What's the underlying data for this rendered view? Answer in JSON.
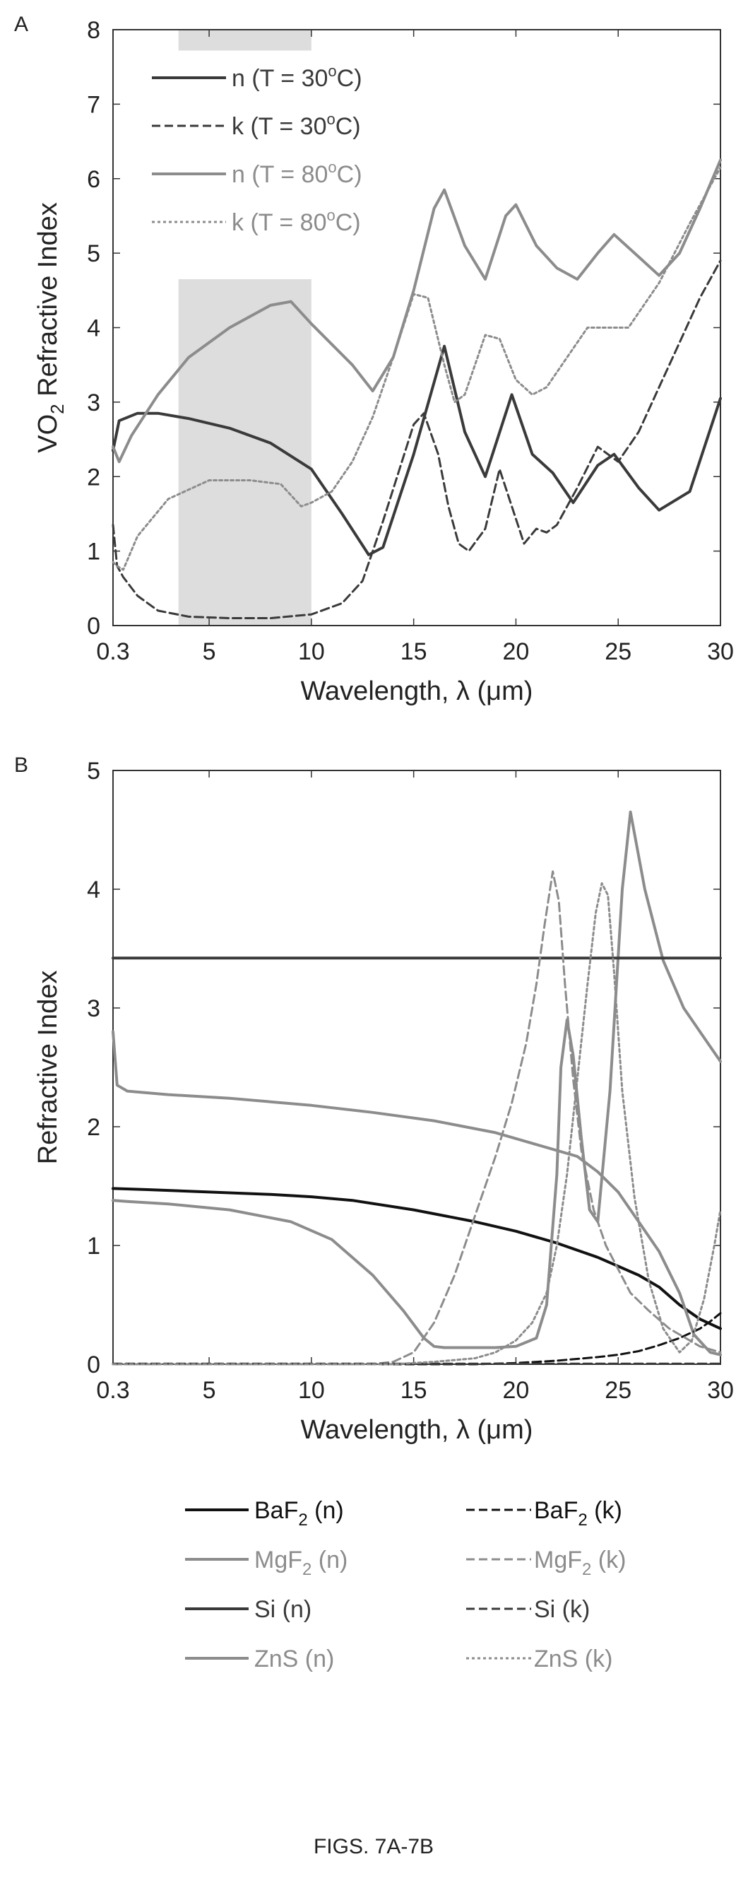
{
  "figure_caption": "FIGS. 7A-7B",
  "colors": {
    "dark": "#3a3a3a",
    "gray": "#8c8c8c",
    "black": "#111111",
    "shade": "#d4d4d4"
  },
  "chart_data": [
    {
      "type": "line",
      "panel_label": "A",
      "title": "",
      "xlabel": "Wavelength, λ (μm)",
      "ylabel_main": "VO",
      "ylabel_sub": "2",
      "ylabel_rest": " Refractive Index",
      "xlim": [
        0.3,
        30
      ],
      "ylim": [
        0,
        8
      ],
      "xticks": [
        0.3,
        5,
        10,
        15,
        20,
        25,
        30
      ],
      "xtick_labels": [
        "0.3",
        "5",
        "10",
        "15",
        "20",
        "25",
        "30"
      ],
      "yticks": [
        0,
        1,
        2,
        3,
        4,
        5,
        6,
        7,
        8
      ],
      "ytick_labels": [
        "0",
        "1",
        "2",
        "3",
        "4",
        "5",
        "6",
        "7",
        "8"
      ],
      "grid": false,
      "legend_position": "top-left",
      "shaded_bands": [
        {
          "x0": 3.5,
          "x1": 10,
          "y0": 0,
          "y1": 4.65
        },
        {
          "x0": 3.5,
          "x1": 10,
          "y0": 7.72,
          "y1": 8
        }
      ],
      "series": [
        {
          "label_main": "n (T = 30",
          "label_sup": "o",
          "label_tail": "C)",
          "color": "dark",
          "dash": "solid",
          "x": [
            0.3,
            0.6,
            1.5,
            2.5,
            4,
            6,
            8,
            10,
            11.5,
            12.8,
            13.5,
            15,
            16.5,
            17.5,
            18.5,
            19.8,
            20.8,
            21.8,
            22.8,
            24,
            24.8,
            26,
            27,
            28.5,
            30
          ],
          "y": [
            2.35,
            2.75,
            2.85,
            2.85,
            2.78,
            2.65,
            2.45,
            2.1,
            1.5,
            0.95,
            1.05,
            2.3,
            3.75,
            2.6,
            2.0,
            3.1,
            2.3,
            2.05,
            1.65,
            2.15,
            2.3,
            1.85,
            1.55,
            1.8,
            3.05
          ]
        },
        {
          "label_main": "k (T = 30",
          "label_sup": "o",
          "label_tail": "C)",
          "color": "dark",
          "dash": "dash",
          "x": [
            0.3,
            0.5,
            0.8,
            1.5,
            2.5,
            4,
            6,
            8,
            10,
            11.5,
            12.5,
            13.5,
            15,
            15.5,
            16.2,
            16.7,
            17.2,
            17.7,
            18.5,
            19.2,
            19.8,
            20.4,
            21,
            21.5,
            22,
            23,
            24,
            25,
            26,
            27,
            28,
            29,
            30
          ],
          "y": [
            1.35,
            0.8,
            0.65,
            0.4,
            0.2,
            0.12,
            0.1,
            0.1,
            0.15,
            0.3,
            0.6,
            1.4,
            2.7,
            2.85,
            2.3,
            1.6,
            1.1,
            1.0,
            1.3,
            2.1,
            1.6,
            1.1,
            1.3,
            1.25,
            1.35,
            1.85,
            2.4,
            2.2,
            2.6,
            3.2,
            3.8,
            4.4,
            4.9
          ]
        },
        {
          "label_main": "n (T = 80",
          "label_sup": "o",
          "label_tail": "C)",
          "color": "gray",
          "dash": "solid",
          "x": [
            0.3,
            0.6,
            1.2,
            2.5,
            4,
            6,
            8,
            9,
            10,
            12,
            13,
            14,
            15,
            16,
            16.5,
            17.5,
            18.5,
            19.5,
            20,
            21,
            22,
            23,
            24,
            24.8,
            26,
            27,
            28,
            29,
            30
          ],
          "y": [
            2.4,
            2.2,
            2.55,
            3.1,
            3.6,
            4.0,
            4.3,
            4.35,
            4.05,
            3.5,
            3.15,
            3.6,
            4.5,
            5.6,
            5.85,
            5.1,
            4.65,
            5.5,
            5.65,
            5.1,
            4.8,
            4.65,
            5.0,
            5.25,
            4.95,
            4.7,
            5.0,
            5.6,
            6.25
          ]
        },
        {
          "label_main": "k (T = 80",
          "label_sup": "o",
          "label_tail": "C)",
          "color": "gray",
          "dash": "dot",
          "x": [
            0.3,
            0.5,
            0.8,
            1.5,
            3,
            5,
            7,
            8.5,
            9.5,
            10,
            11,
            12,
            13,
            14,
            15,
            15.7,
            16.5,
            17,
            17.5,
            18.5,
            19.2,
            20,
            20.8,
            21.5,
            22.5,
            23.5,
            24.3,
            25.5,
            27,
            28.5,
            30
          ],
          "y": [
            0.85,
            0.8,
            0.75,
            1.2,
            1.7,
            1.95,
            1.95,
            1.9,
            1.6,
            1.65,
            1.8,
            2.2,
            2.8,
            3.6,
            4.45,
            4.4,
            3.5,
            3.0,
            3.1,
            3.9,
            3.85,
            3.3,
            3.1,
            3.2,
            3.6,
            4.0,
            4.0,
            4.0,
            4.6,
            5.4,
            6.15
          ]
        }
      ]
    },
    {
      "type": "line",
      "panel_label": "B",
      "title": "",
      "xlabel": "Wavelength, λ (μm)",
      "ylabel_main": "Refractive Index",
      "xlim": [
        0.3,
        30
      ],
      "ylim": [
        0,
        5
      ],
      "xticks": [
        0.3,
        5,
        10,
        15,
        20,
        25,
        30
      ],
      "xtick_labels": [
        "0.3",
        "5",
        "10",
        "15",
        "20",
        "25",
        "30"
      ],
      "yticks": [
        0,
        1,
        2,
        3,
        4,
        5
      ],
      "ytick_labels": [
        "0",
        "1",
        "2",
        "3",
        "4",
        "5"
      ],
      "grid": false,
      "legend_position": "below",
      "series": [
        {
          "label_main": "BaF",
          "label_sub": "2",
          "label_tail": " (n)",
          "color": "black",
          "dash": "solid",
          "x": [
            0.3,
            2,
            5,
            8,
            10,
            12,
            15,
            18,
            20,
            22,
            24,
            26,
            27,
            28,
            29,
            30
          ],
          "y": [
            1.48,
            1.47,
            1.45,
            1.43,
            1.41,
            1.38,
            1.3,
            1.2,
            1.12,
            1.02,
            0.9,
            0.75,
            0.65,
            0.5,
            0.38,
            0.3
          ]
        },
        {
          "label_main": "MgF",
          "label_sub": "2",
          "label_tail": " (n)",
          "color": "gray",
          "dash": "solid",
          "x": [
            0.3,
            1,
            3,
            6,
            9,
            11,
            13,
            14.5,
            15.5,
            16,
            16.5,
            17,
            18,
            19,
            20,
            21,
            21.5,
            22,
            22.2,
            22.5,
            22.8,
            23.2,
            23.6,
            24,
            24.6,
            25.2,
            25.6,
            26.3,
            27.2,
            28.2,
            29.2,
            30
          ],
          "y": [
            1.38,
            1.37,
            1.35,
            1.3,
            1.2,
            1.05,
            0.75,
            0.45,
            0.22,
            0.15,
            0.14,
            0.14,
            0.14,
            0.14,
            0.15,
            0.22,
            0.5,
            1.6,
            2.5,
            2.9,
            2.6,
            1.9,
            1.3,
            1.2,
            2.3,
            4.0,
            4.65,
            4.0,
            3.4,
            3.0,
            2.75,
            2.55
          ]
        },
        {
          "label_main": "Si (n)",
          "label_tail": "",
          "color": "dark",
          "dash": "solid",
          "x": [
            0.3,
            30
          ],
          "y": [
            3.42,
            3.42
          ]
        },
        {
          "label_main": "ZnS (n)",
          "label_tail": "",
          "color": "gray",
          "dash": "solid",
          "x": [
            0.3,
            0.5,
            1,
            3,
            6,
            10,
            13,
            16,
            19,
            21,
            22,
            23,
            24,
            25,
            26,
            27,
            28,
            28.7,
            29.5,
            30
          ],
          "y": [
            2.8,
            2.35,
            2.3,
            2.27,
            2.24,
            2.18,
            2.12,
            2.05,
            1.95,
            1.85,
            1.8,
            1.75,
            1.62,
            1.45,
            1.2,
            0.95,
            0.6,
            0.25,
            0.1,
            0.08
          ]
        },
        {
          "label_main": "BaF",
          "label_sub": "2",
          "label_tail": " (k)",
          "color": "black",
          "dash": "dash",
          "x": [
            0.3,
            18,
            20,
            22,
            24,
            25,
            26,
            27,
            28,
            29,
            29.5,
            30
          ],
          "y": [
            0,
            0,
            0.01,
            0.03,
            0.06,
            0.08,
            0.11,
            0.16,
            0.22,
            0.3,
            0.36,
            0.43
          ]
        },
        {
          "label_main": "MgF",
          "label_sub": "2",
          "label_tail": " (k)",
          "color": "gray",
          "dash": "dash",
          "x": [
            0.3,
            13,
            14,
            15,
            16,
            17,
            18,
            19,
            19.8,
            20.5,
            21,
            21.4,
            21.8,
            22.1,
            22.4,
            22.8,
            23.2,
            23.8,
            24.4,
            25,
            25.6,
            26.5,
            27.5,
            28.5,
            29,
            30
          ],
          "y": [
            0,
            0,
            0.02,
            0.1,
            0.35,
            0.75,
            1.25,
            1.75,
            2.2,
            2.7,
            3.2,
            3.7,
            4.15,
            3.9,
            3.2,
            2.4,
            1.8,
            1.3,
            1.0,
            0.8,
            0.6,
            0.45,
            0.3,
            0.2,
            0.15,
            0.1
          ]
        },
        {
          "label_main": "Si (k)",
          "label_tail": "",
          "color": "dark",
          "dash": "dash",
          "x": [
            0.3,
            30
          ],
          "y": [
            0.005,
            0.005
          ]
        },
        {
          "label_main": "ZnS (k)",
          "label_tail": "",
          "color": "gray",
          "dash": "dot",
          "x": [
            0.3,
            14,
            16,
            18,
            19,
            20,
            20.8,
            21.5,
            22,
            22.5,
            23,
            23.5,
            23.9,
            24.2,
            24.5,
            24.8,
            25.2,
            25.8,
            26.5,
            27.2,
            28,
            28.6,
            29.2,
            29.7,
            30
          ],
          "y": [
            0,
            0,
            0.02,
            0.05,
            0.1,
            0.2,
            0.35,
            0.6,
            1.0,
            1.6,
            2.4,
            3.2,
            3.8,
            4.05,
            3.95,
            3.3,
            2.3,
            1.4,
            0.7,
            0.3,
            0.1,
            0.2,
            0.55,
            1.0,
            1.3
          ]
        }
      ]
    }
  ]
}
